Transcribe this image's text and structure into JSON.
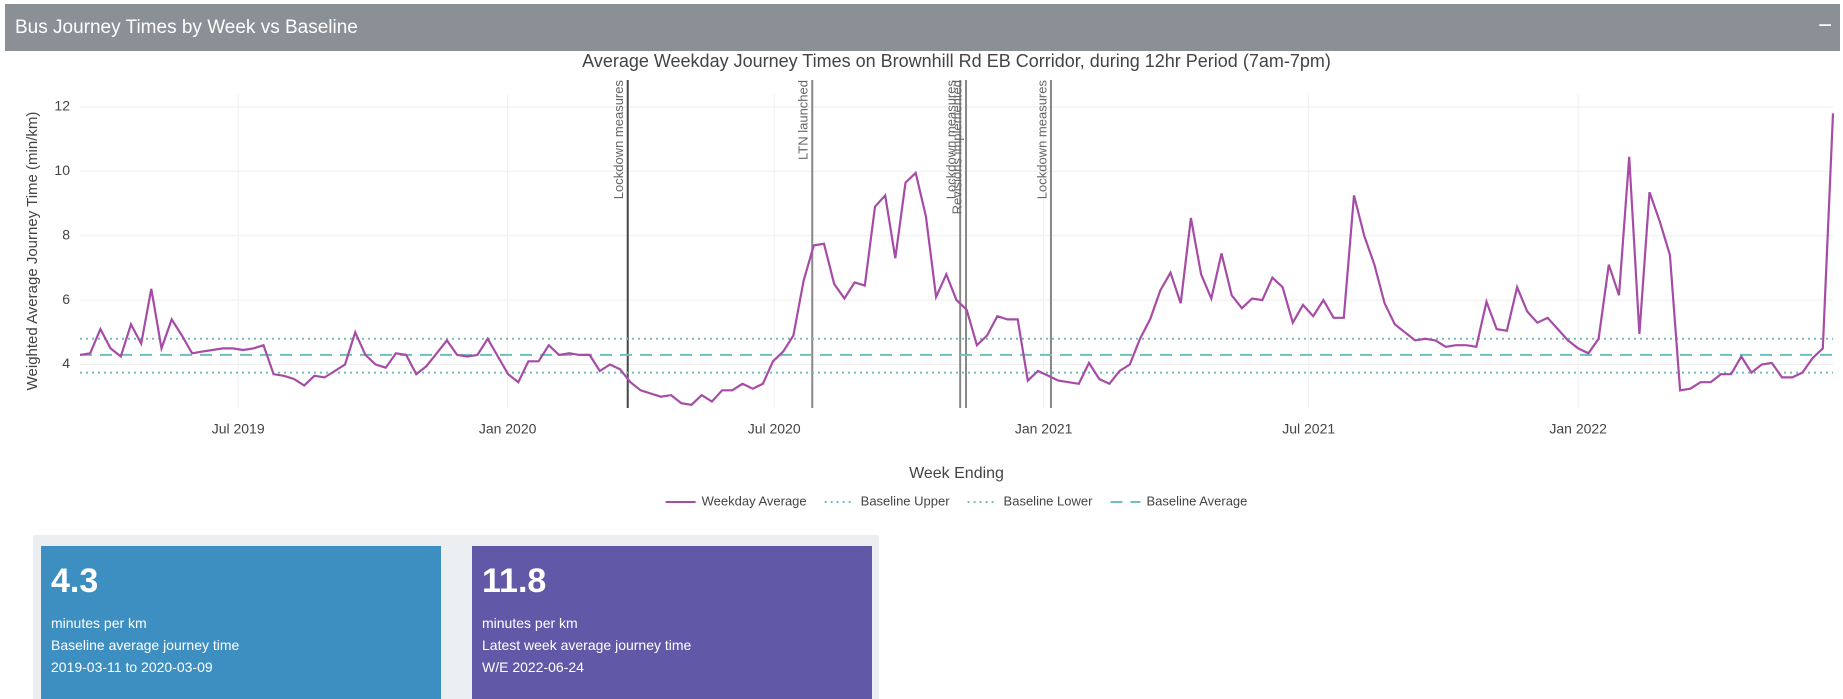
{
  "header": {
    "title": "Bus Journey Times by Week vs Baseline",
    "collapse": "−"
  },
  "chart_data": {
    "type": "line",
    "title": "Average Weekday Journey Times on Brownhill Rd EB Corridor, during 12hr Period (7am-7pm)",
    "x_label": "Week Ending",
    "y_label": "Weighted Average Journey Time (min/km)",
    "xlim": [
      "2019-03-15",
      "2022-06-24"
    ],
    "xticks": [
      {
        "value": "2019-07-01",
        "label": "Jul 2019"
      },
      {
        "value": "2020-01-01",
        "label": "Jan 2020"
      },
      {
        "value": "2020-07-01",
        "label": "Jul 2020"
      },
      {
        "value": "2021-01-01",
        "label": "Jan 2021"
      },
      {
        "value": "2021-07-01",
        "label": "Jul 2021"
      },
      {
        "value": "2022-01-01",
        "label": "Jan 2022"
      }
    ],
    "ylim": [
      2.65,
      12.4
    ],
    "yticks": [
      4,
      6,
      8,
      10,
      12
    ],
    "grid": true,
    "legend": "bottom",
    "series": [
      {
        "name": "Weekday Average",
        "color": "#a64ca6",
        "values": [
          4.3,
          4.35,
          5.1,
          4.5,
          4.25,
          5.25,
          4.65,
          6.35,
          4.5,
          5.4,
          4.9,
          4.35,
          4.4,
          4.45,
          4.5,
          4.5,
          4.45,
          4.5,
          4.6,
          3.7,
          3.65,
          3.55,
          3.35,
          3.65,
          3.6,
          3.8,
          4.0,
          5.0,
          4.3,
          4.0,
          3.9,
          4.35,
          4.3,
          3.7,
          3.95,
          4.35,
          4.75,
          4.3,
          4.25,
          4.3,
          4.8,
          4.25,
          3.7,
          3.45,
          4.1,
          4.1,
          4.6,
          4.3,
          4.35,
          4.3,
          4.3,
          3.8,
          4.0,
          3.85,
          3.45,
          3.2,
          3.1,
          3.0,
          3.05,
          2.8,
          2.75,
          3.05,
          2.85,
          3.2,
          3.2,
          3.4,
          3.25,
          3.4,
          4.1,
          4.4,
          4.9,
          6.6,
          7.7,
          7.75,
          6.5,
          6.05,
          6.55,
          6.45,
          8.9,
          9.25,
          7.3,
          9.65,
          9.95,
          8.6,
          6.1,
          6.8,
          6.0,
          5.7,
          4.6,
          4.9,
          5.5,
          5.4,
          5.4,
          3.5,
          3.8,
          3.65,
          3.5,
          3.45,
          3.4,
          4.05,
          3.55,
          3.4,
          3.8,
          4.0,
          4.8,
          5.4,
          6.3,
          6.85,
          5.9,
          8.55,
          6.8,
          6.05,
          7.45,
          6.15,
          5.75,
          6.05,
          6.0,
          6.7,
          6.4,
          5.3,
          5.85,
          5.5,
          6.0,
          5.45,
          5.45,
          9.25,
          8.0,
          7.1,
          5.9,
          5.25,
          5.0,
          4.75,
          4.8,
          4.75,
          4.55,
          4.6,
          4.6,
          4.55,
          5.95,
          5.1,
          5.05,
          6.4,
          5.65,
          5.3,
          5.45,
          5.1,
          4.75,
          4.5,
          4.35,
          4.8,
          7.1,
          6.15,
          10.45,
          4.95,
          9.35,
          8.45,
          7.4,
          3.2,
          3.25,
          3.45,
          3.45,
          3.7,
          3.7,
          4.25,
          3.75,
          4.0,
          4.05,
          3.6,
          3.6,
          3.75,
          4.2,
          4.5,
          11.8
        ]
      }
    ],
    "baselines": [
      {
        "name": "Baseline Upper",
        "color": "#6fbfbf",
        "dash": "2 4",
        "value": 4.8
      },
      {
        "name": "Baseline Lower",
        "color": "#6fbfbf",
        "dash": "2 4",
        "value": 3.75
      },
      {
        "name": "Baseline Average",
        "color": "#6fbfbf",
        "dash": "12 8",
        "value": 4.3
      }
    ],
    "annotations": [
      {
        "text": "Lockdown measures",
        "x": "2020-03-23",
        "color": "#444"
      },
      {
        "text": "LTN launched",
        "x": "2020-07-27",
        "color": "#888"
      },
      {
        "text": "Lockdown measures",
        "x": "2020-11-05",
        "color": "#888"
      },
      {
        "text": "Revisions implemented",
        "x": "2020-11-09",
        "color": "#888"
      },
      {
        "text": "Lockdown measures",
        "x": "2021-01-06",
        "color": "#888"
      }
    ]
  },
  "value_boxes": [
    {
      "value": 4.3,
      "unit": "minutes per km",
      "label": "Baseline average journey time",
      "period": "2019-03-11 to 2020-03-09",
      "color": "#3d8fc1"
    },
    {
      "value": 11.8,
      "unit": "minutes per km",
      "label": "Latest week average journey time",
      "period": "W/E 2022-06-24",
      "color": "#6159a8"
    }
  ]
}
